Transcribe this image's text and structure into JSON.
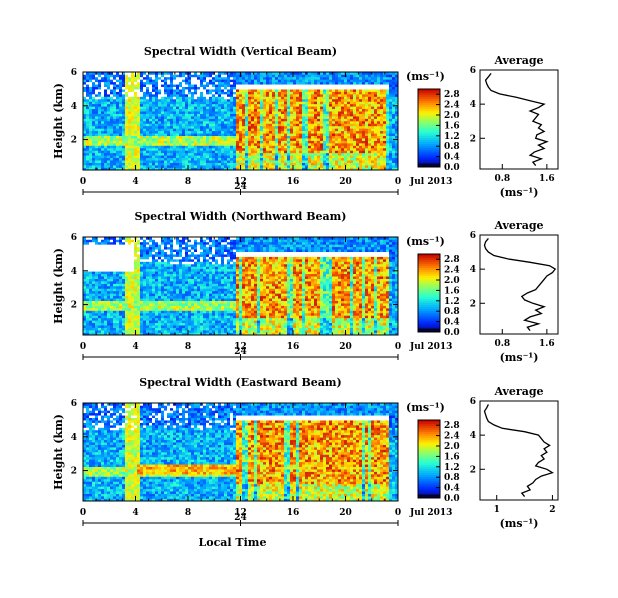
{
  "chart_data": [
    {
      "type": "heatmap",
      "title": "Spectral Width (Vertical Beam)",
      "ylabel": "Height (km)",
      "yticks": [
        "2",
        "4",
        "6"
      ],
      "xticks": [
        "0",
        "4",
        "8",
        "12",
        "16",
        "20",
        "0"
      ],
      "xlim": [
        0,
        24
      ],
      "ylim": [
        0.2,
        6.0
      ],
      "date_day": "24",
      "date_month": "Jul 2013",
      "colorbar": {
        "unit": "(ms⁻¹)",
        "ticks": [
          "0.0",
          "0.4",
          "0.8",
          "1.2",
          "1.6",
          "2.0",
          "2.4",
          "2.8"
        ],
        "range": [
          0,
          3.0
        ]
      },
      "average": {
        "title": "Average",
        "xlabel": "(ms⁻¹)",
        "xticks": [
          "0.8",
          "1.6"
        ],
        "xlim": [
          0.4,
          1.8
        ],
        "yticks": [
          "2",
          "4",
          "6"
        ],
        "ylim": [
          0.2,
          6.0
        ],
        "height": [
          0.4,
          0.6,
          0.8,
          1.0,
          1.2,
          1.4,
          1.6,
          1.8,
          2.0,
          2.2,
          2.4,
          2.6,
          2.8,
          3.0,
          3.2,
          3.4,
          3.6,
          3.8,
          4.0,
          4.2,
          4.4,
          4.6,
          4.8,
          5.0,
          5.2,
          5.4,
          5.6,
          5.8
        ],
        "value": [
          1.4,
          1.35,
          1.5,
          1.3,
          1.38,
          1.55,
          1.45,
          1.6,
          1.4,
          1.42,
          1.55,
          1.45,
          1.5,
          1.35,
          1.4,
          1.45,
          1.3,
          1.45,
          1.55,
          1.3,
          1.05,
          0.75,
          0.6,
          0.55,
          0.52,
          0.5,
          0.55,
          0.6
        ]
      }
    },
    {
      "type": "heatmap",
      "title": "Spectral Width (Northward Beam)",
      "ylabel": "Height (km)",
      "yticks": [
        "2",
        "4",
        "6"
      ],
      "xticks": [
        "0",
        "4",
        "8",
        "12",
        "16",
        "20",
        "0"
      ],
      "xlim": [
        0,
        24
      ],
      "ylim": [
        0.2,
        6.0
      ],
      "date_day": "24",
      "date_month": "Jul 2013",
      "colorbar": {
        "unit": "(ms⁻¹)",
        "ticks": [
          "0.0",
          "0.4",
          "0.8",
          "1.2",
          "1.6",
          "2.0",
          "2.4",
          "2.8"
        ],
        "range": [
          0,
          3.0
        ]
      },
      "average": {
        "title": "Average",
        "xlabel": "(ms⁻¹)",
        "xticks": [
          "0.8",
          "1.6"
        ],
        "xlim": [
          0.4,
          1.8
        ],
        "yticks": [
          "2",
          "4",
          "6"
        ],
        "ylim": [
          0.2,
          6.0
        ],
        "height": [
          0.4,
          0.6,
          0.8,
          1.0,
          1.2,
          1.4,
          1.6,
          1.8,
          2.0,
          2.2,
          2.4,
          2.6,
          2.8,
          3.0,
          3.2,
          3.4,
          3.6,
          3.8,
          4.0,
          4.2,
          4.4,
          4.6,
          4.8,
          5.0,
          5.2,
          5.4,
          5.6,
          5.8
        ],
        "value": [
          1.3,
          1.25,
          1.45,
          1.2,
          1.3,
          1.5,
          1.4,
          1.55,
          1.35,
          1.2,
          1.15,
          1.25,
          1.4,
          1.45,
          1.5,
          1.55,
          1.6,
          1.7,
          1.75,
          1.65,
          1.3,
          0.9,
          0.65,
          0.55,
          0.5,
          0.48,
          0.5,
          0.55
        ]
      }
    },
    {
      "type": "heatmap",
      "title": "Spectral Width (Eastward Beam)",
      "ylabel": "Height (km)",
      "yticks": [
        "2",
        "4",
        "6"
      ],
      "xticks": [
        "0",
        "4",
        "8",
        "12",
        "16",
        "20",
        "0"
      ],
      "xlim": [
        0,
        24
      ],
      "ylim": [
        0.2,
        6.0
      ],
      "date_day": "24",
      "date_month": "Jul 2013",
      "xlabel_bottom": "Local Time",
      "colorbar": {
        "unit": "(ms⁻¹)",
        "ticks": [
          "0.0",
          "0.4",
          "0.8",
          "1.2",
          "1.6",
          "2.0",
          "2.4",
          "2.8"
        ],
        "range": [
          0,
          3.0
        ]
      },
      "average": {
        "title": "Average",
        "xlabel": "(ms⁻¹)",
        "xticks": [
          "1",
          "2"
        ],
        "xlim": [
          0.7,
          2.1
        ],
        "yticks": [
          "2",
          "4",
          "6"
        ],
        "ylim": [
          0.2,
          6.0
        ],
        "height": [
          0.4,
          0.6,
          0.8,
          1.0,
          1.2,
          1.4,
          1.6,
          1.8,
          2.0,
          2.2,
          2.4,
          2.6,
          2.8,
          3.0,
          3.2,
          3.4,
          3.6,
          3.8,
          4.0,
          4.2,
          4.4,
          4.6,
          4.8,
          5.0,
          5.2,
          5.4,
          5.6,
          5.8
        ],
        "value": [
          1.5,
          1.45,
          1.6,
          1.55,
          1.65,
          1.7,
          1.8,
          2.0,
          1.9,
          1.7,
          1.75,
          1.85,
          1.8,
          1.9,
          1.85,
          1.95,
          1.85,
          1.8,
          1.75,
          1.5,
          1.1,
          0.95,
          0.85,
          0.82,
          0.8,
          0.78,
          0.82,
          0.85
        ]
      }
    }
  ]
}
